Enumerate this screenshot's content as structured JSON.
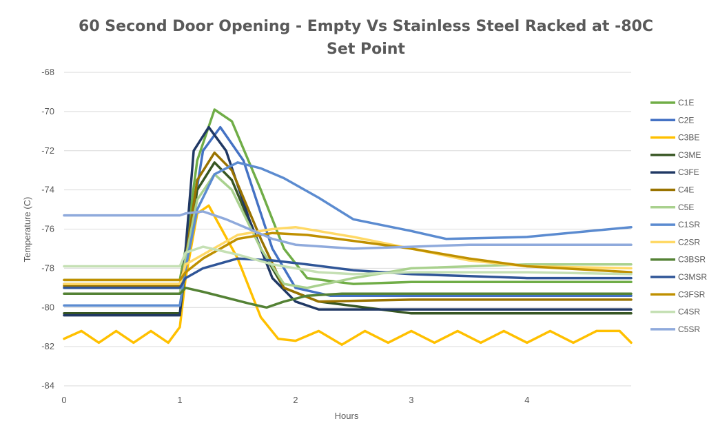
{
  "chart_data": {
    "type": "line",
    "title": "60 Second Door Opening - Empty Vs Stainless Steel Racked at -80C",
    "subtitle": "Set Point",
    "xlabel": "Hours",
    "ylabel": "Temperature (C)",
    "xlim": [
      0,
      4.9
    ],
    "ylim": [
      -84,
      -68
    ],
    "xticks": [
      "0",
      "1",
      "2",
      "3",
      "4"
    ],
    "yticks": [
      "-68",
      "-70",
      "-72",
      "-74",
      "-76",
      "-78",
      "-80",
      "-82",
      "-84"
    ],
    "grid": "horizontal",
    "legend_position": "right",
    "series": [
      {
        "name": "C1E",
        "color": "#70AD47",
        "x": [
          0,
          1,
          1.05,
          1.15,
          1.3,
          1.45,
          1.7,
          1.9,
          2.1,
          2.5,
          3,
          4,
          4.9
        ],
        "y": [
          -78.6,
          -78.6,
          -77,
          -72.5,
          -69.9,
          -70.5,
          -74,
          -77,
          -78.5,
          -78.8,
          -78.7,
          -78.7,
          -78.7
        ]
      },
      {
        "name": "C2E",
        "color": "#4472C4",
        "x": [
          0,
          1,
          1.05,
          1.2,
          1.35,
          1.55,
          1.8,
          2,
          2.3,
          3,
          4,
          4.9
        ],
        "y": [
          -78.8,
          -78.8,
          -77.5,
          -72,
          -70.8,
          -72.5,
          -77,
          -79,
          -79.4,
          -79.4,
          -79.4,
          -79.4
        ]
      },
      {
        "name": "C3BE",
        "color": "#FFC000",
        "x": [
          0,
          0.15,
          0.3,
          0.45,
          0.6,
          0.75,
          0.9,
          1,
          1.05,
          1.15,
          1.25,
          1.5,
          1.7,
          1.85,
          2,
          2.2,
          2.4,
          2.6,
          2.8,
          3,
          3.2,
          3.4,
          3.6,
          3.8,
          4,
          4.2,
          4.4,
          4.6,
          4.8,
          4.9
        ],
        "y": [
          -81.6,
          -81.2,
          -81.8,
          -81.2,
          -81.8,
          -81.2,
          -81.8,
          -81,
          -78.5,
          -75.2,
          -74.8,
          -77.5,
          -80.5,
          -81.6,
          -81.7,
          -81.2,
          -81.9,
          -81.2,
          -81.8,
          -81.2,
          -81.8,
          -81.2,
          -81.8,
          -81.2,
          -81.8,
          -81.2,
          -81.8,
          -81.2,
          -81.2,
          -81.8
        ]
      },
      {
        "name": "C3ME",
        "color": "#375623",
        "x": [
          0,
          1,
          1.05,
          1.15,
          1.3,
          1.45,
          1.7,
          1.9,
          2.2,
          3,
          4,
          4.9
        ],
        "y": [
          -80.3,
          -80.3,
          -78,
          -74,
          -72.6,
          -73.5,
          -77,
          -79,
          -79.7,
          -80.3,
          -80.3,
          -80.3
        ]
      },
      {
        "name": "C3FE",
        "color": "#203864",
        "x": [
          0,
          1,
          1.05,
          1.12,
          1.25,
          1.4,
          1.6,
          1.8,
          2,
          2.2,
          3,
          4,
          4.9
        ],
        "y": [
          -80.4,
          -80.4,
          -77,
          -72,
          -70.8,
          -72,
          -75.5,
          -78.5,
          -79.7,
          -80.1,
          -80.1,
          -80.1,
          -80.1
        ]
      },
      {
        "name": "C4E",
        "color": "#997300",
        "x": [
          0,
          1,
          1.05,
          1.15,
          1.3,
          1.45,
          1.7,
          1.9,
          2.2,
          3,
          4,
          4.9
        ],
        "y": [
          -78.9,
          -78.9,
          -77.5,
          -73.5,
          -72.1,
          -73,
          -76.5,
          -79,
          -79.7,
          -79.6,
          -79.6,
          -79.6
        ]
      },
      {
        "name": "C5E",
        "color": "#A9D18E",
        "x": [
          0,
          1,
          1.05,
          1.15,
          1.3,
          1.45,
          1.7,
          1.9,
          2.1,
          2.5,
          3,
          4,
          4.9
        ],
        "y": [
          -79.3,
          -79.3,
          -77.5,
          -74.5,
          -73.2,
          -74,
          -77,
          -78.8,
          -79,
          -78.5,
          -78,
          -77.8,
          -77.8
        ]
      },
      {
        "name": "C1SR",
        "color": "#5B8BD0",
        "x": [
          0,
          1,
          1.05,
          1.15,
          1.3,
          1.5,
          1.7,
          1.9,
          2.2,
          2.5,
          3,
          3.3,
          4,
          4.9
        ],
        "y": [
          -79.9,
          -79.9,
          -78,
          -75,
          -73.2,
          -72.6,
          -72.9,
          -73.4,
          -74.4,
          -75.5,
          -76.1,
          -76.5,
          -76.4,
          -75.9
        ]
      },
      {
        "name": "C2SR",
        "color": "#FFD966",
        "x": [
          0,
          1,
          1.05,
          1.2,
          1.5,
          1.8,
          2,
          2.5,
          3,
          3.5,
          4,
          4.9
        ],
        "y": [
          -78.8,
          -78.8,
          -77.8,
          -77.3,
          -76.3,
          -76,
          -75.9,
          -76.4,
          -77,
          -77.6,
          -77.9,
          -78
        ]
      },
      {
        "name": "C3BSR",
        "color": "#548235",
        "x": [
          0,
          1,
          1.05,
          1.2,
          1.4,
          1.6,
          1.75,
          1.9,
          2.1,
          2.4,
          3,
          4,
          4.9
        ],
        "y": [
          -79.3,
          -79.3,
          -79,
          -79.2,
          -79.5,
          -79.8,
          -80,
          -79.7,
          -79.4,
          -79.3,
          -79.3,
          -79.3,
          -79.3
        ]
      },
      {
        "name": "C3MSR",
        "color": "#2F5597",
        "x": [
          0,
          1,
          1.05,
          1.2,
          1.5,
          1.8,
          2.1,
          2.5,
          3,
          3.5,
          4,
          4.9
        ],
        "y": [
          -79,
          -79,
          -78.5,
          -78,
          -77.5,
          -77.6,
          -77.8,
          -78.1,
          -78.3,
          -78.4,
          -78.5,
          -78.5
        ]
      },
      {
        "name": "C3FSR",
        "color": "#BF9000",
        "x": [
          0,
          1,
          1.05,
          1.2,
          1.5,
          1.8,
          2.1,
          2.5,
          3,
          3.5,
          4,
          4.9
        ],
        "y": [
          -78.6,
          -78.6,
          -78.2,
          -77.5,
          -76.5,
          -76.2,
          -76.3,
          -76.6,
          -77,
          -77.5,
          -77.9,
          -78.2
        ]
      },
      {
        "name": "C4SR",
        "color": "#C5E0B4",
        "x": [
          0,
          1,
          1.05,
          1.2,
          1.5,
          1.8,
          2.2,
          2.5,
          3,
          4,
          4.9
        ],
        "y": [
          -77.9,
          -77.9,
          -77.2,
          -76.9,
          -77.3,
          -77.8,
          -78.2,
          -78.3,
          -78.2,
          -78.2,
          -78.3
        ]
      },
      {
        "name": "C5SR",
        "color": "#8FAADC",
        "x": [
          0,
          1,
          1.05,
          1.2,
          1.4,
          1.6,
          1.8,
          2,
          2.5,
          3,
          3.5,
          4,
          4.9
        ],
        "y": [
          -75.3,
          -75.3,
          -75.2,
          -75.1,
          -75.5,
          -76,
          -76.5,
          -76.8,
          -77,
          -76.9,
          -76.8,
          -76.8,
          -76.8
        ]
      }
    ]
  }
}
